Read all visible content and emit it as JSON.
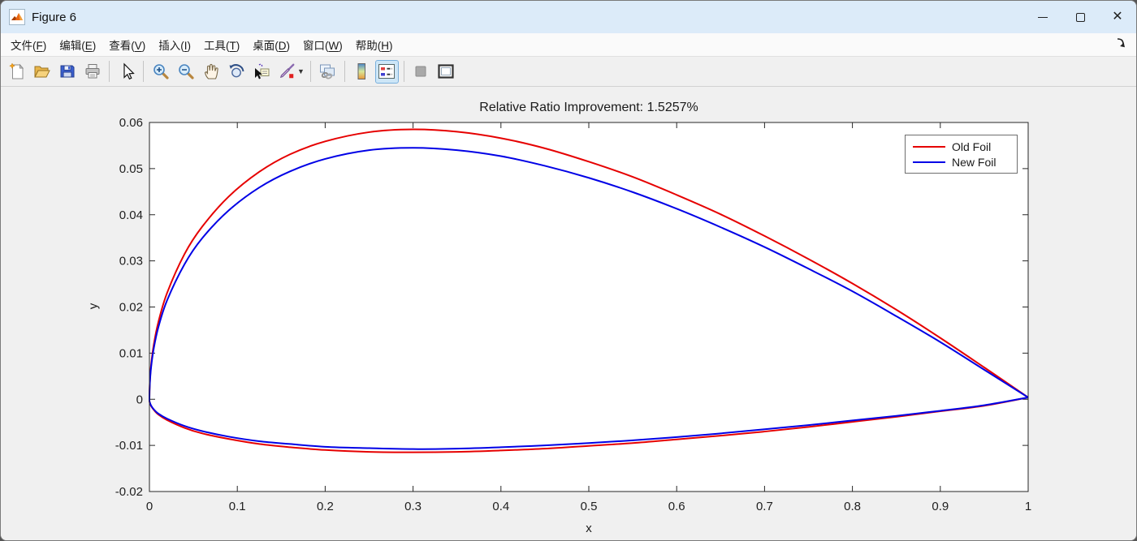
{
  "window": {
    "title": "Figure 6"
  },
  "menu": {
    "items": [
      {
        "name": "file",
        "label": "文件",
        "key": "F"
      },
      {
        "name": "edit",
        "label": "编辑",
        "key": "E"
      },
      {
        "name": "view",
        "label": "查看",
        "key": "V"
      },
      {
        "name": "insert",
        "label": "插入",
        "key": "I"
      },
      {
        "name": "tools",
        "label": "工具",
        "key": "T"
      },
      {
        "name": "desktop",
        "label": "桌面",
        "key": "D"
      },
      {
        "name": "window",
        "label": "窗口",
        "key": "W"
      },
      {
        "name": "help",
        "label": "帮助",
        "key": "H"
      }
    ]
  },
  "toolbar": {
    "buttons": [
      "new-figure",
      "open-file",
      "save-figure",
      "print-figure",
      "edit-plot-arrow",
      "zoom-in",
      "zoom-out",
      "pan-hand",
      "rotate-3d",
      "data-cursor",
      "brush",
      "link-plot",
      "insert-colorbar",
      "insert-legend",
      "hide-plot-tools",
      "show-plot-tools"
    ],
    "active_button": "insert-legend"
  },
  "chart_data": {
    "type": "line",
    "title": "Relative Ratio Improvement: 1.5257%",
    "xlabel": "x",
    "ylabel": "y",
    "xlim": [
      0,
      1
    ],
    "ylim": [
      -0.02,
      0.06
    ],
    "xticks": [
      0,
      0.1,
      0.2,
      0.3,
      0.4,
      0.5,
      0.6,
      0.7,
      0.8,
      0.9,
      1
    ],
    "xtick_labels": [
      "0",
      "0.1",
      "0.2",
      "0.3",
      "0.4",
      "0.5",
      "0.6",
      "0.7",
      "0.8",
      "0.9",
      "1"
    ],
    "yticks": [
      -0.02,
      -0.01,
      0,
      0.01,
      0.02,
      0.03,
      0.04,
      0.05,
      0.06
    ],
    "ytick_labels": [
      "-0.02",
      "-0.01",
      "0",
      "0.01",
      "0.02",
      "0.03",
      "0.04",
      "0.05",
      "0.06"
    ],
    "grid": false,
    "box": true,
    "legend": {
      "position": "northeast",
      "entries": [
        {
          "label": "Old Foil",
          "color": "#e60000"
        },
        {
          "label": "New Foil",
          "color": "#0000e6"
        }
      ]
    },
    "x": [
      0,
      0.0005,
      0.002,
      0.005,
      0.01,
      0.02,
      0.04,
      0.06,
      0.09,
      0.125,
      0.16,
      0.2,
      0.25,
      0.3,
      0.35,
      0.4,
      0.45,
      0.5,
      0.55,
      0.6,
      0.65,
      0.7,
      0.75,
      0.8,
      0.85,
      0.9,
      0.95,
      1
    ],
    "series": [
      {
        "name": "Old Foil",
        "color": "#e60000",
        "upper": [
          0,
          0.0038,
          0.0076,
          0.0119,
          0.0166,
          0.023,
          0.0315,
          0.0374,
          0.0439,
          0.0493,
          0.0531,
          0.0559,
          0.0579,
          0.0585,
          0.058,
          0.0566,
          0.0544,
          0.0515,
          0.0482,
          0.0443,
          0.0401,
          0.0354,
          0.0304,
          0.0251,
          0.0194,
          0.0133,
          0.0069,
          0.0004
        ],
        "lower": [
          0,
          -0.0008,
          -0.0015,
          -0.0023,
          -0.0033,
          -0.0045,
          -0.0062,
          -0.0074,
          -0.0086,
          -0.0097,
          -0.0104,
          -0.011,
          -0.0114,
          -0.0115,
          -0.0114,
          -0.0111,
          -0.0107,
          -0.0101,
          -0.0095,
          -0.0087,
          -0.0079,
          -0.007,
          -0.006,
          -0.0049,
          -0.0038,
          -0.0026,
          -0.0014,
          0.0004
        ]
      },
      {
        "name": "New Foil",
        "color": "#0000e6",
        "upper": [
          0,
          0.0035,
          0.0071,
          0.0111,
          0.0155,
          0.0214,
          0.0293,
          0.0349,
          0.0409,
          0.0459,
          0.0494,
          0.0521,
          0.054,
          0.0545,
          0.054,
          0.0527,
          0.0506,
          0.048,
          0.0449,
          0.0413,
          0.0373,
          0.033,
          0.0283,
          0.0234,
          0.018,
          0.0124,
          0.0064,
          0.0004
        ],
        "lower": [
          0,
          -0.0007,
          -0.0014,
          -0.0022,
          -0.0031,
          -0.0042,
          -0.0058,
          -0.0069,
          -0.0081,
          -0.0091,
          -0.0097,
          -0.0103,
          -0.0106,
          -0.0108,
          -0.0107,
          -0.0104,
          -0.01,
          -0.0095,
          -0.0089,
          -0.0082,
          -0.0074,
          -0.0065,
          -0.0056,
          -0.0046,
          -0.0036,
          -0.0025,
          -0.0013,
          0.0004
        ]
      }
    ]
  }
}
